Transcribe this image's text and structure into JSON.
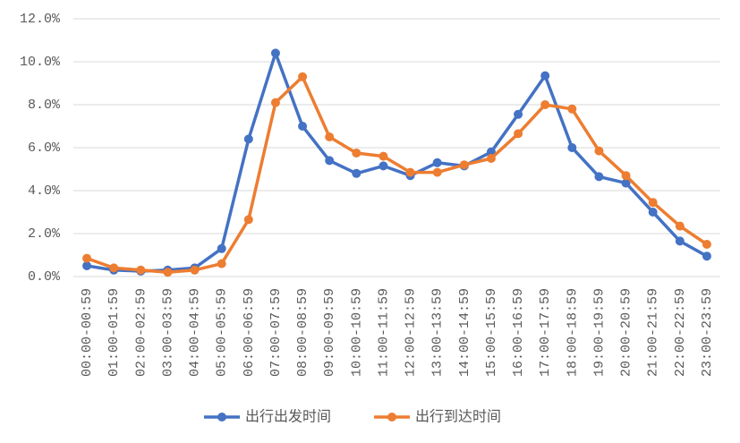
{
  "chart_data": {
    "type": "line",
    "categories": [
      "00:00-00:59",
      "01:00-01:59",
      "02:00-02:59",
      "03:00-03:59",
      "04:00-04:59",
      "05:00-05:59",
      "06:00-06:59",
      "07:00-07:59",
      "08:00-08:59",
      "09:00-09:59",
      "10:00-10:59",
      "11:00-11:59",
      "12:00-12:59",
      "13:00-13:59",
      "14:00-14:59",
      "15:00-15:59",
      "16:00-16:59",
      "17:00-17:59",
      "18:00-18:59",
      "19:00-19:59",
      "20:00-20:59",
      "21:00-21:59",
      "22:00-22:59",
      "23:00-23:59"
    ],
    "series": [
      {
        "name": "出行出发时间",
        "color": "#4472c4",
        "values": [
          0.5,
          0.3,
          0.25,
          0.3,
          0.4,
          1.3,
          6.4,
          10.4,
          7.0,
          5.4,
          4.8,
          5.15,
          4.7,
          5.3,
          5.15,
          5.8,
          7.55,
          9.35,
          6.0,
          4.65,
          4.35,
          3.0,
          1.65,
          0.95
        ]
      },
      {
        "name": "出行到达时间",
        "color": "#ed7d31",
        "values": [
          0.85,
          0.4,
          0.3,
          0.2,
          0.3,
          0.6,
          2.65,
          8.1,
          9.3,
          6.5,
          5.75,
          5.6,
          4.85,
          4.85,
          5.2,
          5.5,
          6.65,
          8.0,
          7.8,
          5.85,
          4.7,
          3.45,
          2.35,
          1.5
        ]
      }
    ],
    "ylim": [
      0,
      12
    ],
    "yticks": [
      {
        "value": 0,
        "label": "0.0%"
      },
      {
        "value": 2,
        "label": "2.0%"
      },
      {
        "value": 4,
        "label": "4.0%"
      },
      {
        "value": 6,
        "label": "6.0%"
      },
      {
        "value": 8,
        "label": "8.0%"
      },
      {
        "value": 10,
        "label": "10.0%"
      },
      {
        "value": 12,
        "label": "12.0%"
      }
    ],
    "grid": true,
    "legend": "bottom"
  }
}
